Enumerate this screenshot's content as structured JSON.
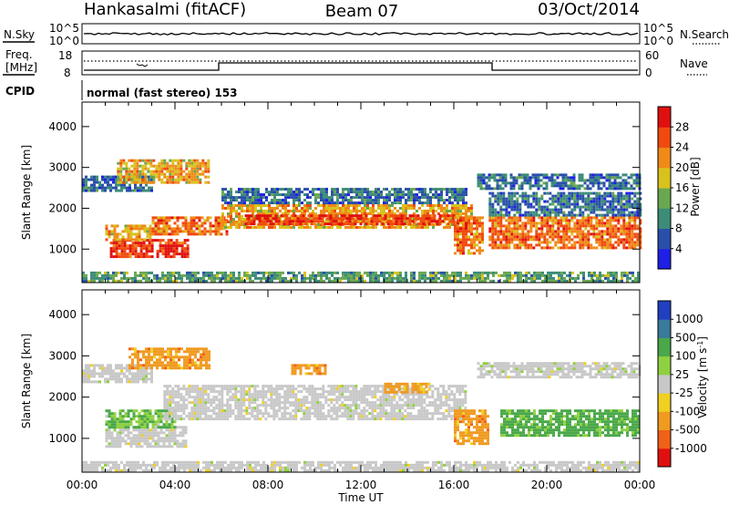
{
  "header": {
    "station": "Hankasalmi (fitACF)",
    "beam": "Beam 07",
    "date": "03/Oct/2014"
  },
  "noise_panel": {
    "left_label": "N.Sky",
    "right_label": "N.Search",
    "tick_top": "10^5",
    "tick_bottom": "10^0"
  },
  "freq_panel": {
    "left_label_1": "Freq.",
    "left_label_2": "[MHz]",
    "left_ticks": [
      "18",
      "8"
    ],
    "right_label": "Nave",
    "right_ticks": [
      "60",
      "0"
    ]
  },
  "cpid": {
    "label": "CPID",
    "mode": "normal (fast stereo) 153"
  },
  "chart_data": [
    {
      "type": "heatmap",
      "title": "",
      "quantity": "Power",
      "colorbar_label": "Power [dB]",
      "ylabel": "Slant Range [km]",
      "xlabel": "",
      "x_ticks": [
        "00:00",
        "04:00",
        "08:00",
        "12:00",
        "16:00",
        "20:00",
        "00:00"
      ],
      "y_ticks": [
        "1000",
        "2000",
        "3000",
        "4000"
      ],
      "ylim": [
        180,
        4600
      ],
      "xlim_hours": [
        0,
        24
      ],
      "colorbar_ticks": [
        "4",
        "8",
        "12",
        "16",
        "20",
        "24",
        "28"
      ],
      "colorbar_colors": [
        "#1f1fe6",
        "#2a4faa",
        "#3c8c78",
        "#6aa84f",
        "#d9c21c",
        "#f08a18",
        "#f04a10",
        "#e01010"
      ],
      "regions": [
        {
          "t0": 1.2,
          "t1": 4.5,
          "r0": 800,
          "r1": 1250,
          "level": 28
        },
        {
          "t0": 1.0,
          "t1": 3.0,
          "r0": 1250,
          "r1": 1600,
          "level": 20
        },
        {
          "t0": 3.0,
          "t1": 6.2,
          "r0": 1350,
          "r1": 1800,
          "level": 24
        },
        {
          "t0": 6.0,
          "t1": 16.8,
          "r0": 1500,
          "r1": 2100,
          "level": 20
        },
        {
          "t0": 7.0,
          "t1": 16.0,
          "r0": 1600,
          "r1": 1850,
          "level": 28
        },
        {
          "t0": 6.0,
          "t1": 16.5,
          "r0": 2100,
          "r1": 2500,
          "level": 8
        },
        {
          "t0": 16.0,
          "t1": 17.2,
          "r0": 900,
          "r1": 1800,
          "level": 24
        },
        {
          "t0": 17.5,
          "t1": 24.0,
          "r0": 1000,
          "r1": 1800,
          "level": 24
        },
        {
          "t0": 17.5,
          "t1": 24.0,
          "r0": 1800,
          "r1": 2400,
          "level": 8
        },
        {
          "t0": 0.0,
          "t1": 3.0,
          "r0": 2400,
          "r1": 2800,
          "level": 8
        },
        {
          "t0": 17.0,
          "t1": 24.0,
          "r0": 2500,
          "r1": 2850,
          "level": 8
        },
        {
          "t0": 1.5,
          "t1": 5.5,
          "r0": 2600,
          "r1": 3200,
          "level": 20
        },
        {
          "t0": 0.0,
          "t1": 24.0,
          "r0": 200,
          "r1": 450,
          "level": 12
        }
      ]
    },
    {
      "type": "heatmap",
      "title": "",
      "quantity": "Velocity",
      "colorbar_label": "Velocity [m s^-1]",
      "ylabel": "Slant Range [km]",
      "xlabel": "Time UT",
      "x_ticks": [
        "00:00",
        "04:00",
        "08:00",
        "12:00",
        "16:00",
        "20:00",
        "00:00"
      ],
      "y_ticks": [
        "1000",
        "2000",
        "3000",
        "4000"
      ],
      "ylim": [
        180,
        4600
      ],
      "xlim_hours": [
        0,
        24
      ],
      "colorbar_ticks": [
        "1000",
        "500",
        "100",
        "25",
        "-25",
        "-100",
        "-500",
        "-1000"
      ],
      "colorbar_colors": [
        "#2040c0",
        "#3a7a9a",
        "#4aa84a",
        "#8fd040",
        "#c8c8c8",
        "#f0d020",
        "#f09a20",
        "#f06018",
        "#e01010"
      ],
      "regions": [
        {
          "t0": 1.0,
          "t1": 4.5,
          "r0": 800,
          "r1": 1300,
          "level": 0
        },
        {
          "t0": 1.0,
          "t1": 4.0,
          "r0": 1300,
          "r1": 1700,
          "level": 100
        },
        {
          "t0": 3.5,
          "t1": 16.5,
          "r0": 1500,
          "r1": 2300,
          "level": 0
        },
        {
          "t0": 0.0,
          "t1": 3.0,
          "r0": 2400,
          "r1": 2800,
          "level": 0
        },
        {
          "t0": 17.0,
          "t1": 24.0,
          "r0": 2500,
          "r1": 2850,
          "level": 0
        },
        {
          "t0": 16.0,
          "t1": 17.5,
          "r0": 900,
          "r1": 1700,
          "level": -300
        },
        {
          "t0": 18.0,
          "t1": 24.0,
          "r0": 1100,
          "r1": 1700,
          "level": 200
        },
        {
          "t0": 2.0,
          "t1": 5.5,
          "r0": 2700,
          "r1": 3200,
          "level": -300
        },
        {
          "t0": 9.0,
          "t1": 10.5,
          "r0": 2550,
          "r1": 2800,
          "level": -300
        },
        {
          "t0": 13.0,
          "t1": 15.0,
          "r0": 2150,
          "r1": 2350,
          "level": -200
        },
        {
          "t0": 0.0,
          "t1": 24.0,
          "r0": 200,
          "r1": 450,
          "level": 0
        }
      ]
    }
  ]
}
